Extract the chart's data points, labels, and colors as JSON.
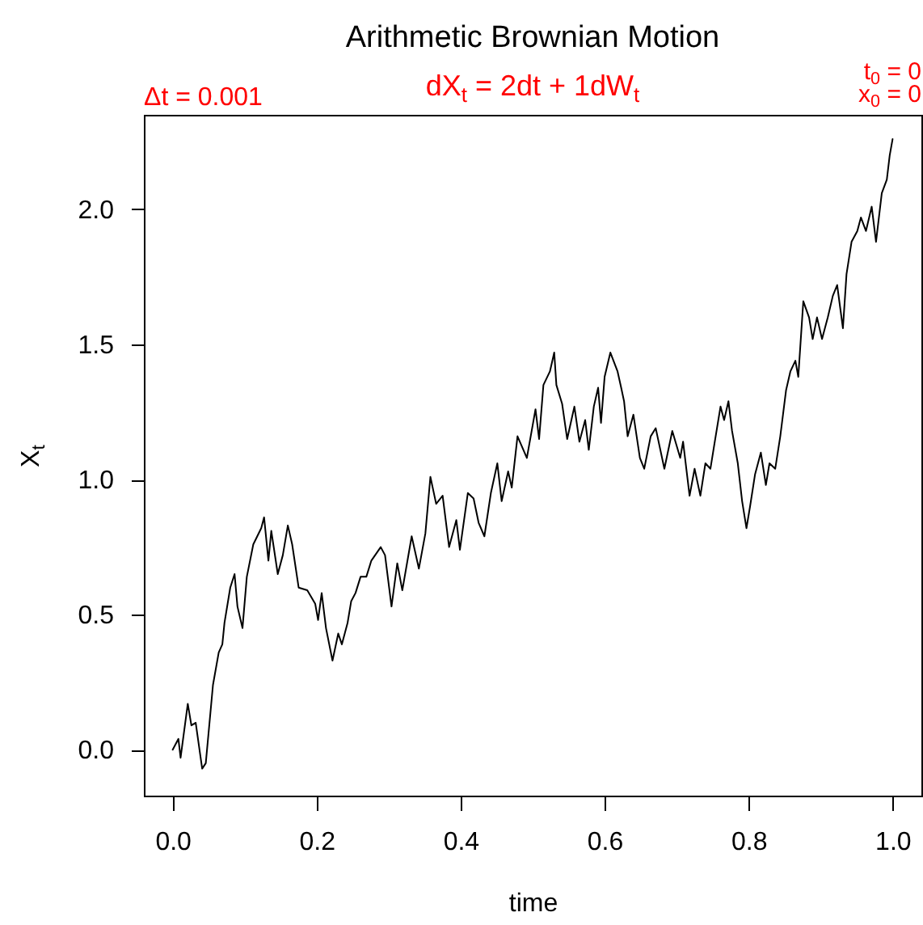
{
  "chart_data": {
    "type": "line",
    "title": "Arithmetic Brownian Motion",
    "subtitle": "dX$_{t}$ = 2dt + 1dW$_{t}$",
    "xlabel": "time",
    "ylabel": "X$_{t}$",
    "annotations": [
      "Δt = 0.001",
      "t$_{0}$ = 0",
      "x$_{0}$ = 0"
    ],
    "color": "#000000",
    "line_style": "solid",
    "xlim": [
      -0.04,
      1.04
    ],
    "xticks": [
      {
        "value": 0,
        "label": "0.0"
      },
      0.2,
      0.4,
      0.6,
      0.8,
      {
        "value": 1,
        "label": "1.0"
      }
    ],
    "ylim": [
      -0.17,
      2.35
    ],
    "yticks": [
      {
        "value": 0,
        "label": "0.0"
      },
      0.5,
      {
        "value": 1,
        "label": "1.0"
      },
      1.5,
      {
        "value": 2,
        "label": "2.0"
      }
    ],
    "x": [
      0,
      0.008,
      0.011,
      0.021,
      0.026,
      0.032,
      0.041,
      0.046,
      0.056,
      0.064,
      0.069,
      0.072,
      0.08,
      0.086,
      0.09,
      0.097,
      0.103,
      0.112,
      0.123,
      0.127,
      0.133,
      0.137,
      0.146,
      0.153,
      0.16,
      0.166,
      0.175,
      0.187,
      0.198,
      0.202,
      0.207,
      0.213,
      0.222,
      0.23,
      0.235,
      0.243,
      0.248,
      0.254,
      0.261,
      0.269,
      0.276,
      0.289,
      0.295,
      0.304,
      0.312,
      0.319,
      0.332,
      0.342,
      0.351,
      0.358,
      0.366,
      0.375,
      0.384,
      0.394,
      0.399,
      0.41,
      0.418,
      0.425,
      0.433,
      0.442,
      0.451,
      0.457,
      0.466,
      0.471,
      0.479,
      0.492,
      0.504,
      0.509,
      0.515,
      0.524,
      0.53,
      0.533,
      0.541,
      0.548,
      0.558,
      0.565,
      0.573,
      0.578,
      0.585,
      0.591,
      0.595,
      0.6,
      0.608,
      0.618,
      0.623,
      0.627,
      0.632,
      0.64,
      0.649,
      0.655,
      0.664,
      0.671,
      0.683,
      0.694,
      0.705,
      0.709,
      0.718,
      0.725,
      0.733,
      0.74,
      0.747,
      0.753,
      0.761,
      0.766,
      0.772,
      0.777,
      0.785,
      0.791,
      0.797,
      0.802,
      0.809,
      0.817,
      0.824,
      0.829,
      0.837,
      0.844,
      0.852,
      0.858,
      0.865,
      0.869,
      0.876,
      0.884,
      0.889,
      0.895,
      0.902,
      0.91,
      0.917,
      0.923,
      0.931,
      0.936,
      0.943,
      0.951,
      0.956,
      0.963,
      0.971,
      0.977,
      0.985,
      0.992,
      0.996,
      1
    ],
    "values": [
      0,
      0.04,
      -0.03,
      0.17,
      0.09,
      0.1,
      -0.07,
      -0.05,
      0.24,
      0.36,
      0.39,
      0.47,
      0.6,
      0.65,
      0.53,
      0.45,
      0.64,
      0.76,
      0.82,
      0.86,
      0.7,
      0.81,
      0.65,
      0.72,
      0.83,
      0.76,
      0.6,
      0.59,
      0.54,
      0.48,
      0.58,
      0.45,
      0.33,
      0.43,
      0.39,
      0.47,
      0.55,
      0.58,
      0.64,
      0.64,
      0.7,
      0.75,
      0.72,
      0.53,
      0.69,
      0.59,
      0.79,
      0.67,
      0.8,
      1.01,
      0.91,
      0.94,
      0.75,
      0.85,
      0.74,
      0.95,
      0.93,
      0.84,
      0.79,
      0.95,
      1.06,
      0.92,
      1.03,
      0.97,
      1.16,
      1.08,
      1.26,
      1.15,
      1.35,
      1.4,
      1.47,
      1.35,
      1.28,
      1.15,
      1.27,
      1.14,
      1.22,
      1.11,
      1.27,
      1.34,
      1.21,
      1.38,
      1.47,
      1.4,
      1.34,
      1.29,
      1.16,
      1.24,
      1.08,
      1.04,
      1.16,
      1.19,
      1.04,
      1.18,
      1.08,
      1.14,
      0.94,
      1.04,
      0.94,
      1.06,
      1.04,
      1.14,
      1.27,
      1.22,
      1.29,
      1.18,
      1.06,
      0.92,
      0.82,
      0.9,
      1.02,
      1.1,
      0.98,
      1.06,
      1.04,
      1.16,
      1.33,
      1.4,
      1.44,
      1.38,
      1.66,
      1.6,
      1.52,
      1.6,
      1.52,
      1.6,
      1.68,
      1.72,
      1.56,
      1.76,
      1.88,
      1.92,
      1.97,
      1.92,
      2.01,
      1.88,
      2.06,
      2.11,
      2.2,
      2.26
    ]
  }
}
